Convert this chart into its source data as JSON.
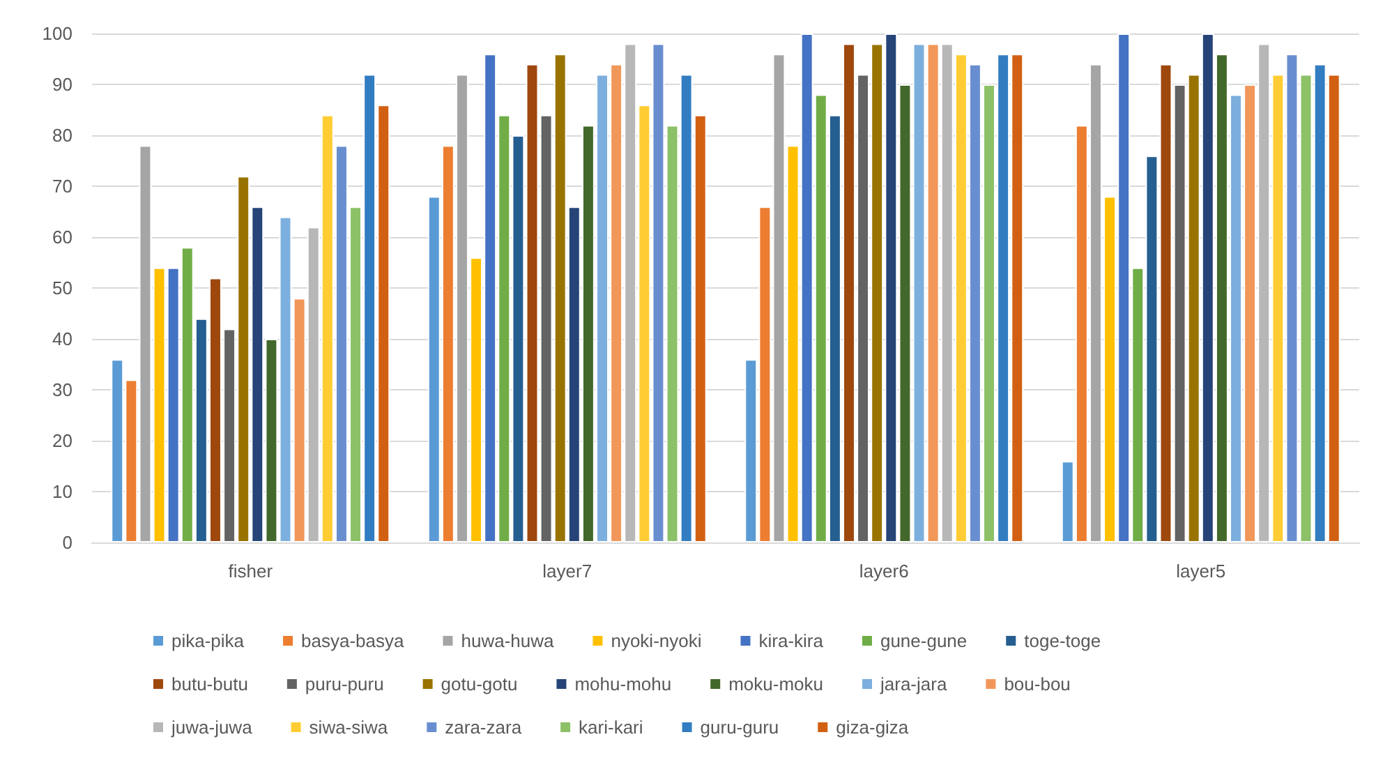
{
  "chart_data": {
    "type": "bar",
    "categories": [
      "fisher",
      "layer7",
      "layer6",
      "layer5"
    ],
    "ylim": [
      0,
      100
    ],
    "yticks": [
      0,
      10,
      20,
      30,
      40,
      50,
      60,
      70,
      80,
      90,
      100
    ],
    "grid": "y",
    "legend": "bottom",
    "series": [
      {
        "name": "pika-pika",
        "color": "#5b9bd5",
        "values": [
          36,
          68,
          36,
          16
        ]
      },
      {
        "name": "basya-basya",
        "color": "#ed7d31",
        "values": [
          32,
          78,
          66,
          82
        ]
      },
      {
        "name": "huwa-huwa",
        "color": "#a5a5a5",
        "values": [
          78,
          92,
          96,
          94
        ]
      },
      {
        "name": "nyoki-nyoki",
        "color": "#ffc000",
        "values": [
          54,
          56,
          78,
          68
        ]
      },
      {
        "name": "kira-kira",
        "color": "#4472c4",
        "values": [
          54,
          96,
          100,
          100
        ]
      },
      {
        "name": "gune-gune",
        "color": "#70ad47",
        "values": [
          58,
          84,
          88,
          54
        ]
      },
      {
        "name": "toge-toge",
        "color": "#255e91",
        "values": [
          44,
          80,
          84,
          76
        ]
      },
      {
        "name": "butu-butu",
        "color": "#9e480e",
        "values": [
          52,
          94,
          98,
          94
        ]
      },
      {
        "name": "puru-puru",
        "color": "#636363",
        "values": [
          42,
          84,
          92,
          90
        ]
      },
      {
        "name": "gotu-gotu",
        "color": "#997300",
        "values": [
          72,
          96,
          98,
          92
        ]
      },
      {
        "name": "mohu-mohu",
        "color": "#264478",
        "values": [
          66,
          66,
          100,
          100
        ]
      },
      {
        "name": "moku-moku",
        "color": "#43682b",
        "values": [
          40,
          82,
          90,
          96
        ]
      },
      {
        "name": "jara-jara",
        "color": "#7cafdd",
        "values": [
          64,
          92,
          98,
          88
        ]
      },
      {
        "name": "bou-bou",
        "color": "#f1975a",
        "values": [
          48,
          94,
          98,
          90
        ]
      },
      {
        "name": "juwa-juwa",
        "color": "#b7b7b7",
        "values": [
          62,
          98,
          98,
          98
        ]
      },
      {
        "name": "siwa-siwa",
        "color": "#ffcd33",
        "values": [
          84,
          86,
          96,
          92
        ]
      },
      {
        "name": "zara-zara",
        "color": "#698ed0",
        "values": [
          78,
          98,
          94,
          96
        ]
      },
      {
        "name": "kari-kari",
        "color": "#8cc168",
        "values": [
          66,
          82,
          90,
          92
        ]
      },
      {
        "name": "guru-guru",
        "color": "#327dc2",
        "values": [
          92,
          92,
          96,
          94
        ]
      },
      {
        "name": "giza-giza",
        "color": "#d26012",
        "values": [
          86,
          84,
          96,
          92
        ]
      }
    ]
  }
}
